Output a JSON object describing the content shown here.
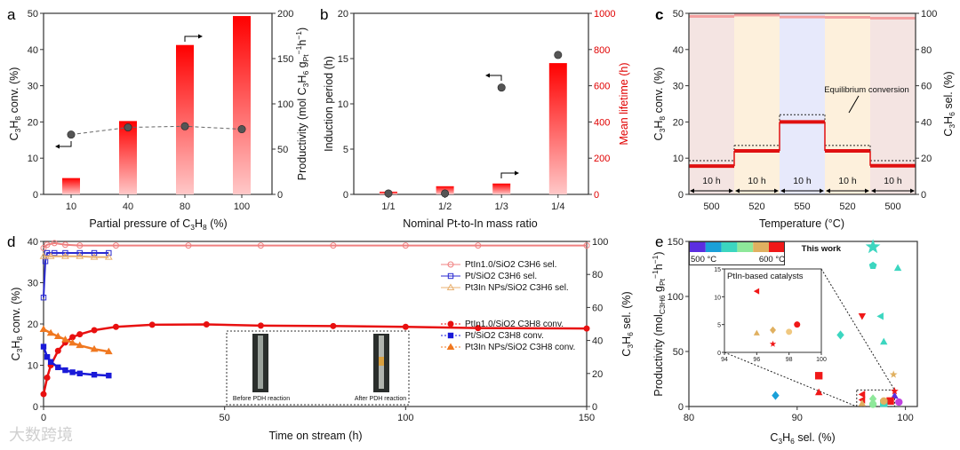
{
  "watermark": "大数跨境",
  "chart_data": [
    {
      "id": "a",
      "panel_label": "a",
      "type": "bar",
      "xlabel": "Partial pressure of C_{3}H_{8} (%)",
      "ylabel": "C_{3}H_{8} conv. (%)",
      "ylabel_right": "Productivity (mol C_{3}H_{6} g_{Pt}^{−1}h^{−1})",
      "categories": [
        "10",
        "40",
        "80",
        "100"
      ],
      "ylim": [
        0,
        50
      ],
      "yticks": [
        0,
        10,
        20,
        30,
        40,
        50
      ],
      "ylim_right": [
        0,
        200
      ],
      "yticks_right": [
        0,
        50,
        100,
        150,
        200
      ],
      "series": [
        {
          "name": "Productivity",
          "kind": "bar",
          "axis": "right",
          "values": [
            18,
            81,
            165,
            197
          ],
          "color": "#ff0000"
        },
        {
          "name": "C3H8 conv.",
          "kind": "line-dashed-points",
          "axis": "left",
          "values": [
            16.5,
            18.5,
            18.8,
            18.0
          ],
          "color": "#555555"
        }
      ]
    },
    {
      "id": "b",
      "panel_label": "b",
      "type": "bar",
      "xlabel": "Nominal Pt-to-In mass ratio",
      "ylabel": "Induction period (h)",
      "ylabel_right": "Mean lifetime (h)",
      "categories": [
        "1/1",
        "1/2",
        "1/3",
        "1/4"
      ],
      "ylim": [
        0,
        20
      ],
      "yticks": [
        0,
        5,
        10,
        15,
        20
      ],
      "ylim_right": [
        0,
        1000
      ],
      "yticks_right": [
        0,
        200,
        400,
        600,
        800,
        1000
      ],
      "series": [
        {
          "name": "Mean lifetime",
          "kind": "bar",
          "axis": "right",
          "values": [
            15,
            45,
            60,
            725
          ],
          "color": "#ff0000"
        },
        {
          "name": "Induction period",
          "kind": "points",
          "axis": "left",
          "values": [
            0.1,
            0.1,
            11.8,
            15.4
          ],
          "color": "#555555"
        }
      ]
    },
    {
      "id": "c",
      "panel_label": "c",
      "type": "line",
      "xlabel": "Temperature (°C)",
      "ylabel": "C_{3}H_{8} conv. (%)",
      "ylabel_right": "C_{3}H_{6} sel. (%)",
      "segments": [
        "500",
        "520",
        "550",
        "520",
        "500"
      ],
      "segment_duration_label": "10 h",
      "ylim": [
        0,
        50
      ],
      "yticks": [
        0,
        10,
        20,
        30,
        40,
        50
      ],
      "ylim_right": [
        0,
        100
      ],
      "yticks_right": [
        0,
        20,
        40,
        60,
        80,
        100
      ],
      "conversion": [
        7.8,
        12.0,
        20.0,
        12.0,
        7.9
      ],
      "selectivity": [
        98.3,
        99.0,
        98.0,
        97.8,
        97.3
      ],
      "equilibrium_conversion": [
        9.3,
        13.5,
        22.0,
        13.5,
        9.3
      ],
      "annotation": "Equilibrium conversion",
      "segment_colors": [
        "#f4e4e2",
        "#fdf0dc",
        "#e7e9fb",
        "#fdf0dc",
        "#f4e4e2"
      ]
    },
    {
      "id": "d",
      "panel_label": "d",
      "type": "line",
      "xlabel": "Time on stream (h)",
      "ylabel": "C_{3}H_{8} conv. (%)",
      "ylabel_right": "C_{3}H_{6} sel. (%)",
      "xlim": [
        0,
        150
      ],
      "xticks": [
        0,
        50,
        100,
        150
      ],
      "ylim": [
        0,
        40
      ],
      "yticks": [
        0,
        10,
        20,
        30,
        40
      ],
      "ylim_right": [
        0,
        100
      ],
      "yticks_right": [
        0,
        20,
        40,
        60,
        80,
        100
      ],
      "legend_position": "right",
      "series": [
        {
          "name": "PtIn_{1.0}/SiO_{2} C_{3}H_{6} sel.",
          "axis": "right",
          "marker": "open-circle",
          "color": "#f08080",
          "x": [
            0,
            1,
            3,
            6,
            10,
            20,
            40,
            60,
            80,
            100,
            120,
            150
          ],
          "y": [
            96,
            98,
            99,
            98,
            97.5,
            97.5,
            97.5,
            97.5,
            97.5,
            97.5,
            97.5,
            97.5
          ]
        },
        {
          "name": "Pt/SiO_{2} C_{3}H_{6} sel.",
          "axis": "right",
          "marker": "open-square",
          "color": "#2a2ad0",
          "x": [
            0,
            0.5,
            1,
            3,
            6,
            10,
            14,
            18
          ],
          "y": [
            66,
            88,
            93,
            93,
            93,
            93,
            93,
            93
          ]
        },
        {
          "name": "Pt_{3}In NPs/SiO_{2} C_{3}H_{6} sel.",
          "axis": "right",
          "marker": "open-triangle",
          "color": "#e8b070",
          "x": [
            0,
            2,
            6,
            10,
            14,
            18
          ],
          "y": [
            91,
            91,
            91,
            91,
            90.5,
            90.5
          ]
        },
        {
          "name": "PtIn_{1.0}/SiO_{2} C_{3}H_{8} conv.",
          "axis": "left",
          "marker": "filled-circle",
          "color": "#e81010",
          "x": [
            0,
            1,
            2,
            4,
            6,
            8,
            10,
            14,
            20,
            30,
            45,
            60,
            80,
            100,
            120,
            150
          ],
          "y": [
            3,
            7,
            10,
            13.5,
            15.5,
            16.8,
            17.5,
            18.5,
            19.3,
            19.8,
            19.9,
            19.6,
            19.5,
            19.3,
            19.0,
            18.9
          ]
        },
        {
          "name": "Pt/SiO_{2} C_{3}H_{8} conv.",
          "axis": "left",
          "marker": "filled-square",
          "color": "#1a1ad8",
          "x": [
            0,
            1,
            2,
            4,
            6,
            8,
            10,
            14,
            18
          ],
          "y": [
            14.5,
            12,
            10.8,
            9.5,
            8.8,
            8.3,
            8.0,
            7.7,
            7.5
          ]
        },
        {
          "name": "Pt_{3}In NPs/SiO_{2} C_{3}H_{8} conv.",
          "axis": "left",
          "marker": "filled-triangle",
          "color": "#f07820",
          "x": [
            0,
            2,
            4,
            6,
            8,
            10,
            14,
            18
          ],
          "y": [
            18.7,
            17.8,
            17,
            16.2,
            15.4,
            14.8,
            13.9,
            13.3
          ]
        }
      ],
      "photo_labels": [
        "Before PDH reaction",
        "After PDH reaction"
      ]
    },
    {
      "id": "e",
      "panel_label": "e",
      "type": "scatter",
      "xlabel": "C_{3}H_{6} sel. (%)",
      "ylabel": "Productivity (mol_{C3H6} g_{Pt}^{−1}h^{−1})",
      "xlim": [
        80,
        101.1
      ],
      "xticks": [
        80,
        90,
        100
      ],
      "ylim": [
        0,
        150
      ],
      "yticks": [
        0,
        50,
        100,
        150
      ],
      "colorbar": {
        "colors": [
          "#5b2ee0",
          "#1aa0d8",
          "#3cd6c0",
          "#8ee89a",
          "#e0b060",
          "#f01818"
        ],
        "min_label": "500 °C",
        "max_label": "600 °C"
      },
      "this_work_label": "This work",
      "points": [
        {
          "x": 97,
          "y": 145,
          "shape": "star",
          "color": "#3cd6c0",
          "this_work": true
        },
        {
          "x": 97,
          "y": 128,
          "shape": "pentagon",
          "color": "#3cd6c0"
        },
        {
          "x": 99.3,
          "y": 126,
          "shape": "triangle",
          "color": "#3cd6c0"
        },
        {
          "x": 96,
          "y": 82,
          "shape": "invtriangle",
          "color": "#f01818"
        },
        {
          "x": 97.7,
          "y": 82,
          "shape": "lefttriangle",
          "color": "#3cd6c0"
        },
        {
          "x": 94,
          "y": 65,
          "shape": "diamond",
          "color": "#3cd6c0"
        },
        {
          "x": 98,
          "y": 59,
          "shape": "triangle",
          "color": "#3cd6c0"
        },
        {
          "x": 98.9,
          "y": 29,
          "shape": "star",
          "color": "#e0b060"
        },
        {
          "x": 92,
          "y": 28,
          "shape": "square",
          "color": "#f01818"
        },
        {
          "x": 92,
          "y": 13,
          "shape": "triangle",
          "color": "#f01818"
        },
        {
          "x": 88,
          "y": 10,
          "shape": "diamond",
          "color": "#1aa0d8"
        },
        {
          "x": 96,
          "y": 11,
          "shape": "lefttriangle",
          "color": "#f01818"
        },
        {
          "x": 96,
          "y": 6,
          "shape": "lefttriangle",
          "color": "#f01818"
        },
        {
          "x": 97,
          "y": 7,
          "shape": "diamond",
          "color": "#8ee89a"
        },
        {
          "x": 99,
          "y": 10,
          "shape": "triangle",
          "color": "#5b2ee0"
        },
        {
          "x": 99,
          "y": 14,
          "shape": "star",
          "color": "#f01818"
        },
        {
          "x": 98.6,
          "y": 5,
          "shape": "square",
          "color": "#f01818"
        },
        {
          "x": 99.4,
          "y": 4,
          "shape": "circle",
          "color": "#c040e0"
        },
        {
          "x": 98,
          "y": 3,
          "shape": "square",
          "color": "#3cd6c0"
        },
        {
          "x": 97,
          "y": 2,
          "shape": "circle",
          "color": "#8ee89a"
        },
        {
          "x": 96,
          "y": 3,
          "shape": "triangle",
          "color": "#e0b060"
        },
        {
          "x": 98,
          "y": 5,
          "shape": "circle",
          "color": "#e0b060"
        }
      ],
      "inset": {
        "title": "PtIn-based catalysts",
        "xlim": [
          94,
          100
        ],
        "xticks": [
          94,
          96,
          98,
          100
        ],
        "ylim": [
          0,
          15
        ],
        "yticks": [
          0,
          5,
          10,
          15
        ],
        "points": [
          {
            "x": 96,
            "y": 11,
            "shape": "lefttriangle",
            "color": "#f01818"
          },
          {
            "x": 96,
            "y": 3.5,
            "shape": "triangle",
            "color": "#e0b060"
          },
          {
            "x": 97,
            "y": 4,
            "shape": "diamond",
            "color": "#e0b060"
          },
          {
            "x": 98,
            "y": 3.7,
            "shape": "circle",
            "color": "#f0c880"
          },
          {
            "x": 98.5,
            "y": 5,
            "shape": "circle",
            "color": "#f01818"
          },
          {
            "x": 97,
            "y": 1.5,
            "shape": "star",
            "color": "#f01818"
          }
        ]
      }
    }
  ]
}
